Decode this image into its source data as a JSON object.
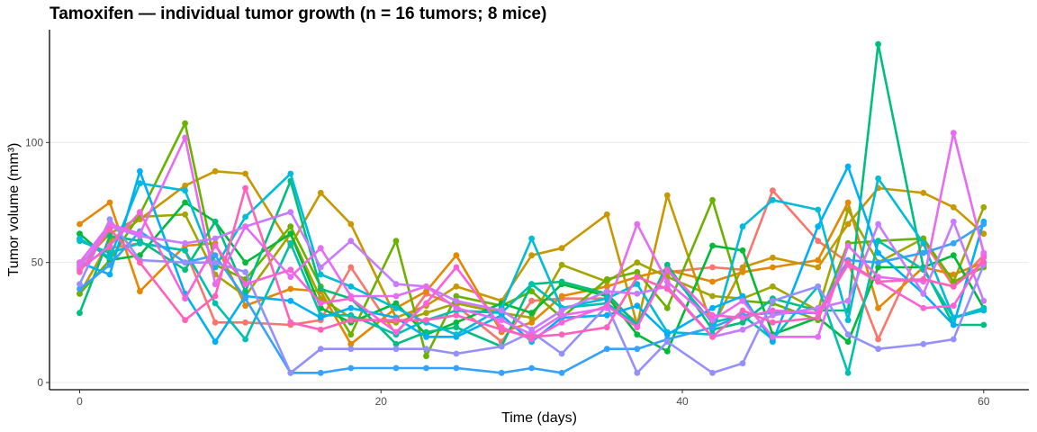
{
  "chart_data": {
    "type": "line",
    "title": "Tamoxifen — individual tumor growth (n = 16 tumors; 8 mice)",
    "xlabel": "Time (days)",
    "ylabel": "Tumor volume (mm³)",
    "xlim": [
      -2,
      63
    ],
    "ylim": [
      -3,
      147
    ],
    "x_ticks": [
      0,
      20,
      40,
      60
    ],
    "y_ticks": [
      0,
      50,
      100
    ],
    "grid": true,
    "legend": "none",
    "x": [
      0,
      2,
      4,
      7,
      9,
      11,
      14,
      16,
      18,
      21,
      23,
      25,
      28,
      30,
      32,
      35,
      37,
      39,
      42,
      44,
      46,
      49,
      51,
      53,
      56,
      58,
      60
    ],
    "series": [
      {
        "color": "#F8766D",
        "values": [
          48,
          56,
          58,
          55,
          25,
          25,
          24,
          26,
          48,
          20,
          37,
          32,
          17,
          34,
          35,
          35,
          25,
          46,
          48,
          47,
          80,
          59,
          50,
          18,
          59,
          40,
          53
        ]
      },
      {
        "color": "#E58700",
        "values": [
          66,
          75,
          38,
          57,
          58,
          32,
          39,
          38,
          16,
          31,
          38,
          53,
          21,
          25,
          36,
          40,
          44,
          47,
          42,
          46,
          48,
          51,
          75,
          31,
          48,
          45,
          50
        ]
      },
      {
        "color": "#C99800",
        "values": [
          37,
          59,
          68,
          82,
          88,
          87,
          57,
          79,
          66,
          27,
          32,
          40,
          34,
          53,
          56,
          70,
          24,
          78,
          23,
          48,
          52,
          48,
          66,
          81,
          79,
          73,
          62
        ]
      },
      {
        "color": "#A3A500",
        "values": [
          49,
          62,
          69,
          70,
          45,
          36,
          62,
          35,
          27,
          25,
          29,
          33,
          29,
          27,
          49,
          42,
          50,
          44,
          36,
          35,
          40,
          30,
          72,
          50,
          60,
          42,
          73
        ]
      },
      {
        "color": "#6BB100",
        "values": [
          37,
          51,
          70,
          108,
          49,
          43,
          65,
          40,
          20,
          59,
          11,
          36,
          32,
          38,
          27,
          43,
          46,
          31,
          76,
          34,
          33,
          26,
          58,
          59,
          60,
          42,
          48
        ]
      },
      {
        "color": "#00BA38",
        "values": [
          62,
          51,
          53,
          75,
          67,
          50,
          62,
          31,
          25,
          33,
          20,
          25,
          33,
          29,
          41,
          36,
          20,
          13,
          57,
          55,
          20,
          27,
          17,
          48,
          48,
          53,
          31
        ]
      },
      {
        "color": "#00BF7D",
        "values": [
          29,
          61,
          59,
          47,
          67,
          38,
          84,
          39,
          35,
          16,
          21,
          23,
          15,
          41,
          42,
          37,
          24,
          49,
          22,
          25,
          35,
          30,
          30,
          141,
          48,
          24,
          24
        ]
      },
      {
        "color": "#00C0AF",
        "values": [
          59,
          54,
          58,
          55,
          33,
          18,
          58,
          28,
          28,
          20,
          26,
          30,
          29,
          41,
          31,
          33,
          24,
          47,
          25,
          28,
          18,
          40,
          4,
          59,
          47,
          27,
          31
        ]
      },
      {
        "color": "#00BCD8",
        "values": [
          60,
          52,
          83,
          80,
          48,
          69,
          87,
          45,
          40,
          31,
          25,
          20,
          31,
          60,
          31,
          35,
          41,
          21,
          20,
          65,
          76,
          72,
          26,
          85,
          58,
          27,
          30
        ]
      },
      {
        "color": "#00B0F6",
        "values": [
          50,
          45,
          88,
          37,
          17,
          36,
          34,
          27,
          31,
          27,
          19,
          19,
          28,
          17,
          27,
          28,
          32,
          20,
          31,
          36,
          17,
          65,
          90,
          54,
          37,
          24,
          67
        ]
      },
      {
        "color": "#35A2FF",
        "values": [
          39,
          49,
          63,
          50,
          53,
          35,
          4,
          4,
          6,
          6,
          6,
          6,
          4,
          6,
          4,
          14,
          14,
          18,
          23,
          28,
          29,
          29,
          51,
          50,
          54,
          58,
          66
        ]
      },
      {
        "color": "#9590FF",
        "values": [
          41,
          68,
          51,
          50,
          50,
          46,
          4,
          14,
          14,
          14,
          14,
          12,
          15,
          21,
          12,
          32,
          4,
          17,
          4,
          8,
          34,
          40,
          20,
          14,
          16,
          18,
          49
        ]
      },
      {
        "color": "#C77CFF",
        "values": [
          48,
          65,
          61,
          58,
          60,
          65,
          71,
          48,
          59,
          41,
          40,
          34,
          30,
          22,
          30,
          38,
          37,
          40,
          19,
          22,
          28,
          31,
          34,
          66,
          37,
          67,
          34
        ]
      },
      {
        "color": "#E76BF3",
        "values": [
          50,
          66,
          62,
          102,
          41,
          65,
          44,
          56,
          36,
          36,
          40,
          31,
          26,
          20,
          28,
          31,
          66,
          42,
          26,
          34,
          19,
          19,
          57,
          44,
          42,
          104,
          54
        ]
      },
      {
        "color": "#FA62DB",
        "values": [
          47,
          57,
          71,
          35,
          57,
          41,
          47,
          33,
          35,
          21,
          33,
          48,
          23,
          18,
          25,
          32,
          23,
          47,
          28,
          27,
          30,
          29,
          49,
          42,
          31,
          32,
          52
        ]
      },
      {
        "color": "#FF62BC",
        "values": [
          46,
          64,
          50,
          26,
          36,
          81,
          25,
          22,
          26,
          26,
          26,
          28,
          22,
          19,
          20,
          23,
          44,
          39,
          19,
          30,
          25,
          27,
          50,
          42,
          43,
          40,
          50
        ]
      }
    ]
  }
}
